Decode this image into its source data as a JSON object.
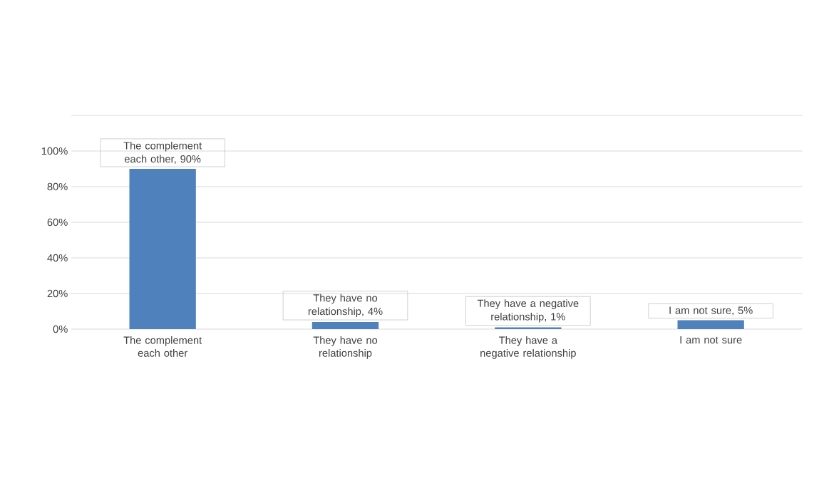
{
  "chart_data": {
    "type": "bar",
    "categories": [
      "The complement each other",
      "They have no relationship",
      "They have a negative relationship",
      "I am not sure"
    ],
    "values": [
      90,
      4,
      1,
      5
    ],
    "value_labels": [
      "The complement each other, 90%",
      "They have no relationship, 4%",
      "They have a negative relationship, 1%",
      "I am not sure, 5%"
    ],
    "color": "#4f81bd",
    "ylim": [
      0,
      120
    ],
    "yticks": [
      {
        "value": 0,
        "label": "0%"
      },
      {
        "value": 20,
        "label": "20%"
      },
      {
        "value": 40,
        "label": "40%"
      },
      {
        "value": 60,
        "label": "60%"
      },
      {
        "value": 80,
        "label": "80%"
      },
      {
        "value": 100,
        "label": "100%"
      },
      {
        "value": 120,
        "label": null
      }
    ],
    "grid": "y"
  }
}
